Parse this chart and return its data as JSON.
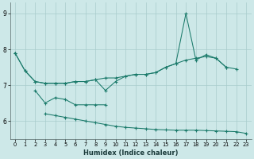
{
  "xlabel": "Humidex (Indice chaleur)",
  "bg_color": "#cde8e8",
  "grid_color": "#a8cccc",
  "line_color": "#1a7a6a",
  "xlim": [
    -0.5,
    23.5
  ],
  "ylim": [
    5.5,
    9.3
  ],
  "xticks": [
    0,
    1,
    2,
    3,
    4,
    5,
    6,
    7,
    8,
    9,
    10,
    11,
    12,
    13,
    14,
    15,
    16,
    17,
    18,
    19,
    20,
    21,
    22,
    23
  ],
  "yticks": [
    6,
    7,
    8,
    9
  ],
  "line_a": [
    7.9,
    7.4,
    7.1,
    7.05,
    7.05,
    7.05,
    7.1,
    7.1,
    7.15,
    7.2,
    7.2,
    7.25,
    7.3,
    7.3,
    7.35,
    7.5,
    7.6,
    7.7,
    7.75,
    7.8,
    7.75,
    7.5,
    null,
    null
  ],
  "line_b": [
    7.9,
    7.4,
    7.1,
    7.05,
    7.05,
    7.05,
    7.1,
    7.1,
    7.15,
    6.85,
    7.1,
    7.25,
    7.3,
    7.3,
    7.35,
    7.5,
    7.6,
    9.0,
    7.7,
    7.85,
    7.75,
    7.5,
    7.45,
    null
  ],
  "line_c": [
    null,
    null,
    6.85,
    6.5,
    6.65,
    6.6,
    6.45,
    6.45,
    6.45,
    6.45,
    null,
    null,
    null,
    null,
    null,
    null,
    null,
    null,
    null,
    null,
    null,
    null,
    null,
    null
  ],
  "line_d": [
    7.9,
    null,
    null,
    6.2,
    6.15,
    6.1,
    6.05,
    6.0,
    5.95,
    5.9,
    5.85,
    5.82,
    5.8,
    5.78,
    5.76,
    5.75,
    5.74,
    5.74,
    5.74,
    5.73,
    5.72,
    5.71,
    5.7,
    5.65
  ]
}
